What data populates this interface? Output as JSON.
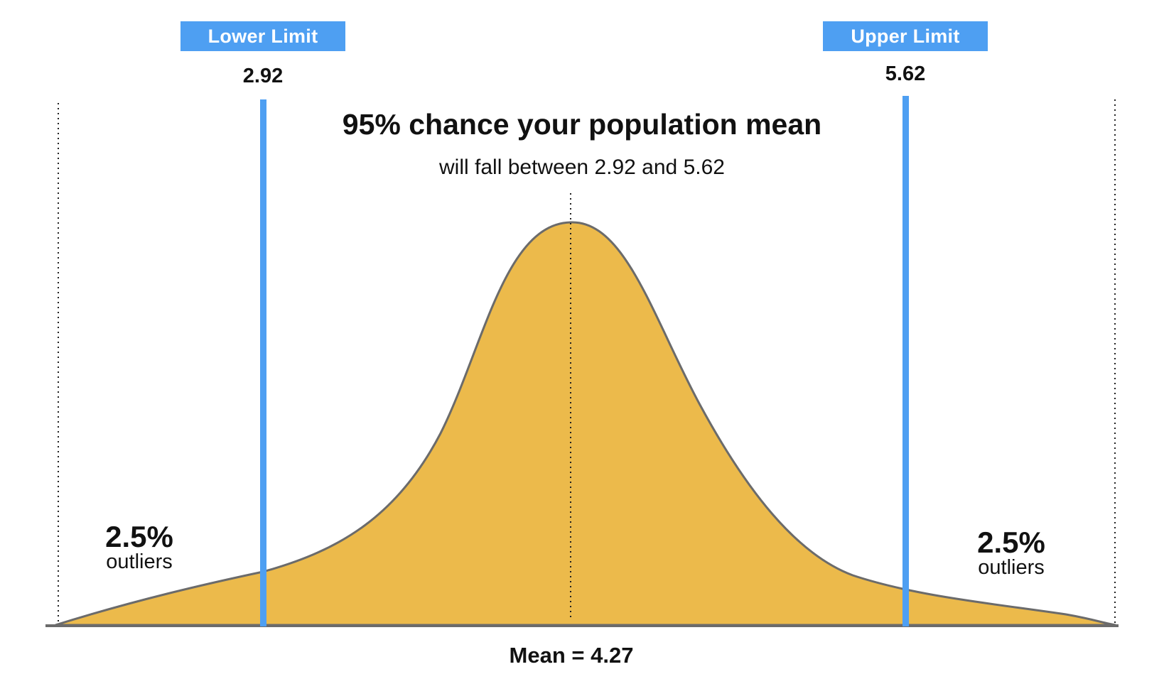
{
  "header": {
    "lower_tag": "Lower Limit",
    "upper_tag": "Upper Limit",
    "lower_value": "2.92",
    "upper_value": "5.62"
  },
  "headline": "95% chance your population mean",
  "subline": "will fall between 2.92 and 5.62",
  "tails": {
    "left_pct": "2.5%",
    "left_word": "outliers",
    "right_pct": "2.5%",
    "right_word": "outliers"
  },
  "mean_label": "Mean = 4.27",
  "colors": {
    "curve_fill": "#ecba4b",
    "curve_stroke": "#6b6b6b",
    "limit_blue": "#4e9ff2",
    "baseline": "#6b6b6b"
  }
}
